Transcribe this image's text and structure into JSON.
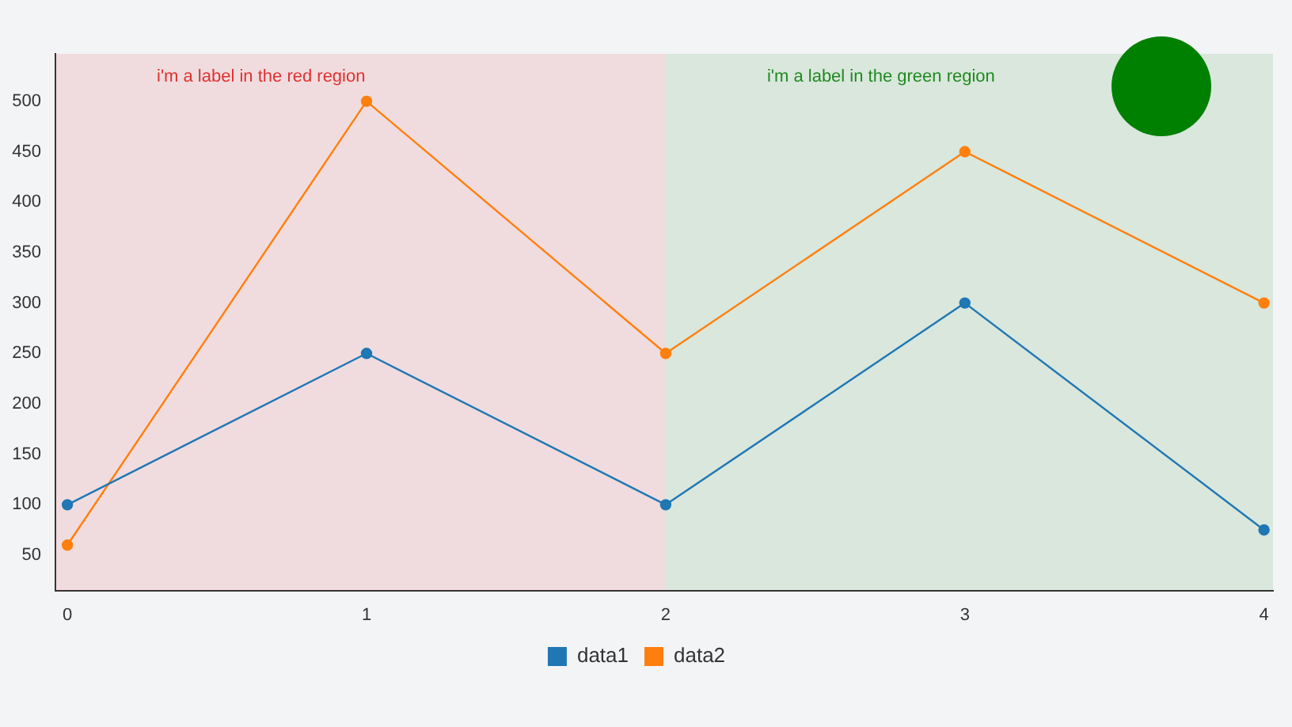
{
  "chart_data": {
    "type": "line",
    "x": [
      0,
      1,
      2,
      3,
      4
    ],
    "series": [
      {
        "name": "data1",
        "color": "#1f77b4",
        "values": [
          100,
          250,
          100,
          300,
          75
        ]
      },
      {
        "name": "data2",
        "color": "#ff7f0e",
        "values": [
          60,
          500,
          250,
          450,
          300
        ]
      }
    ],
    "xlim": [
      -0.04,
      4.03
    ],
    "xticks": [
      0,
      1,
      2,
      3,
      4
    ],
    "ylim": [
      15,
      547
    ],
    "yticks": [
      50,
      100,
      150,
      200,
      250,
      300,
      350,
      400,
      450,
      500
    ],
    "bands": [
      {
        "axis": "x",
        "from": -0.04,
        "to": 2,
        "label": "i'm a label in the red region",
        "color": "#e03030"
      },
      {
        "axis": "x",
        "from": 2,
        "to": 4.03,
        "label": "i'm a label in the green region",
        "color": "#1e8a1e"
      }
    ],
    "marker": "circle",
    "line_style": "solid",
    "grid": false,
    "legend": "bottom"
  }
}
